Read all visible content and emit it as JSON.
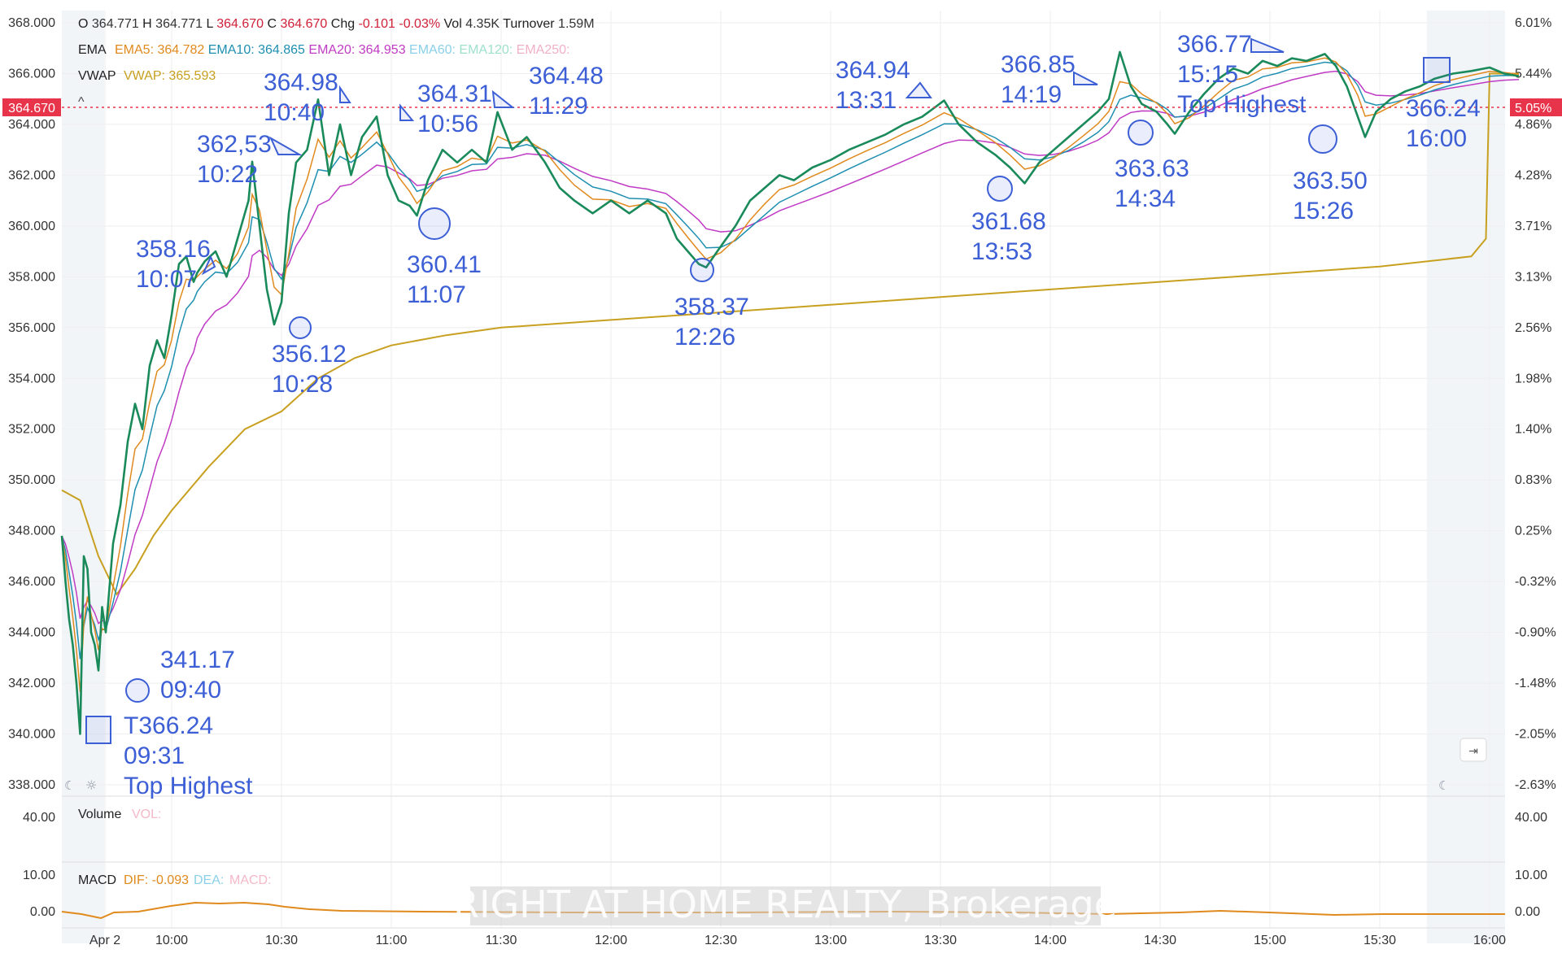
{
  "header": {
    "ohlc": [
      {
        "label": "O",
        "value": "364.771",
        "color": "#333333"
      },
      {
        "label": "H",
        "value": "364.771",
        "color": "#333333"
      },
      {
        "label": "L",
        "value": "364.670",
        "color": "#d0213a"
      },
      {
        "label": "C",
        "value": "364.670",
        "color": "#d0213a"
      },
      {
        "label": "Chg",
        "value": "-0.101",
        "color": "#d0213a"
      },
      {
        "label": "",
        "value": "-0.03%",
        "color": "#d0213a"
      },
      {
        "label": "Vol",
        "value": "4.35K",
        "color": "#333333"
      },
      {
        "label": "Turnover",
        "value": "1.59M",
        "color": "#333333"
      }
    ],
    "ema_title": "EMA",
    "ema_items": [
      {
        "text": "EMA5: 364.782",
        "color": "#e08a1e"
      },
      {
        "text": "EMA10: 364.865",
        "color": "#1e8fb0"
      },
      {
        "text": "EMA20: 364.953",
        "color": "#c03bc4"
      },
      {
        "text": "EMA60:",
        "color": "#8ad0e8"
      },
      {
        "text": "EMA120:",
        "color": "#9ee0cc"
      },
      {
        "text": "EMA250:",
        "color": "#f0b0c8"
      }
    ],
    "vwap_title": "VWAP",
    "vwap_item": {
      "text": "VWAP: 365.593",
      "color": "#c8a020"
    },
    "caret": "^"
  },
  "price_axis": {
    "ticks": [
      "368.000",
      "366.000",
      "364.000",
      "362.000",
      "360.000",
      "358.000",
      "356.000",
      "354.000",
      "352.000",
      "350.000",
      "348.000",
      "346.000",
      "344.000",
      "342.000",
      "340.000",
      "338.000"
    ]
  },
  "pct_axis": {
    "ticks": [
      "6.01%",
      "5.44%",
      "4.86%",
      "4.28%",
      "3.71%",
      "3.13%",
      "2.56%",
      "1.98%",
      "1.40%",
      "0.83%",
      "0.25%",
      "-0.32%",
      "-0.90%",
      "-1.48%",
      "-2.05%",
      "-2.63%"
    ]
  },
  "time_axis": {
    "ticks": [
      "Apr 2",
      "10:00",
      "10:30",
      "11:00",
      "11:30",
      "12:00",
      "12:30",
      "13:00",
      "13:30",
      "14:00",
      "14:30",
      "15:00",
      "15:30",
      "16:00"
    ]
  },
  "last_price": {
    "left": "364.670",
    "right": "5.05%",
    "color": "#e8344a"
  },
  "volume": {
    "title": "Volume",
    "item": "VOL:",
    "tick": "40.00"
  },
  "macd": {
    "title": "MACD",
    "dif": "DIF: -0.093",
    "dea": "DEA:",
    "macd": "MACD:",
    "ticks": [
      "10.00",
      "0.00"
    ]
  },
  "watermark": "RIGHT AT HOME REALTY, Brokerage",
  "annotations": [
    {
      "price": "T366.24",
      "time": "09:31",
      "extra": "Top Highest"
    },
    {
      "price": "341.17",
      "time": "09:40"
    },
    {
      "price": "358.16",
      "time": "10:07"
    },
    {
      "price": "362,53",
      "time": "10:22"
    },
    {
      "price": "356.12",
      "time": "10:28"
    },
    {
      "price": "364.98",
      "time": "10:40"
    },
    {
      "price": "364.31",
      "time": "10:56"
    },
    {
      "price": "360.41",
      "time": "11:07"
    },
    {
      "price": "364.48",
      "time": "11:29"
    },
    {
      "price": "358.37",
      "time": "12:26"
    },
    {
      "price": "364.94",
      "time": "13:31"
    },
    {
      "price": "361.68",
      "time": "13:53"
    },
    {
      "price": "366.85",
      "time": "14:19"
    },
    {
      "price": "363.63",
      "time": "14:34"
    },
    {
      "price": "366.77",
      "time": "15:15",
      "extra": "Top Highest"
    },
    {
      "price": "363.50",
      "time": "15:26"
    },
    {
      "price": "366.24",
      "time": "16:00"
    }
  ],
  "colors": {
    "price": "#1a8a5a",
    "ema5": "#e08a1e",
    "ema10": "#1e8fb0",
    "ema20": "#c03bc4",
    "vwap": "#c8a020",
    "annotation": "#3d5fd6",
    "grid": "#eeeeee"
  },
  "chart_data": {
    "type": "line",
    "title": "",
    "x_unit": "time (HH:MM)",
    "y_unit": "price",
    "ylim": [
      338,
      368
    ],
    "xlim": [
      "09:30",
      "16:08"
    ],
    "grid": true,
    "legend": "top-left",
    "series": [
      {
        "name": "Price",
        "points": [
          [
            "09:30",
            347.8
          ],
          [
            "09:31",
            346.0
          ],
          [
            "09:32",
            344.5
          ],
          [
            "09:33",
            343.5
          ],
          [
            "09:34",
            342.0
          ],
          [
            "09:35",
            340.0
          ],
          [
            "09:36",
            347.0
          ],
          [
            "09:37",
            346.5
          ],
          [
            "09:38",
            344.0
          ],
          [
            "09:39",
            343.5
          ],
          [
            "09:40",
            342.5
          ],
          [
            "09:41",
            345.0
          ],
          [
            "09:42",
            344.0
          ],
          [
            "09:44",
            347.5
          ],
          [
            "09:46",
            349.0
          ],
          [
            "09:48",
            351.5
          ],
          [
            "09:50",
            353.0
          ],
          [
            "09:52",
            352.0
          ],
          [
            "09:54",
            354.5
          ],
          [
            "09:56",
            355.5
          ],
          [
            "09:58",
            354.8
          ],
          [
            "10:00",
            356.5
          ],
          [
            "10:02",
            358.5
          ],
          [
            "10:04",
            358.8
          ],
          [
            "10:06",
            357.8
          ],
          [
            "10:07",
            358.16
          ],
          [
            "10:09",
            358.6
          ],
          [
            "10:12",
            359.0
          ],
          [
            "10:15",
            358.0
          ],
          [
            "10:18",
            359.5
          ],
          [
            "10:21",
            361.0
          ],
          [
            "10:22",
            362.53
          ],
          [
            "10:24",
            360.0
          ],
          [
            "10:26",
            357.5
          ],
          [
            "10:28",
            356.12
          ],
          [
            "10:30",
            357.0
          ],
          [
            "10:32",
            360.5
          ],
          [
            "10:34",
            362.5
          ],
          [
            "10:37",
            363.0
          ],
          [
            "10:40",
            364.98
          ],
          [
            "10:43",
            362.0
          ],
          [
            "10:46",
            364.0
          ],
          [
            "10:49",
            362.0
          ],
          [
            "10:52",
            363.5
          ],
          [
            "10:56",
            364.31
          ],
          [
            "10:59",
            362.0
          ],
          [
            "11:02",
            361.0
          ],
          [
            "11:05",
            360.8
          ],
          [
            "11:07",
            360.41
          ],
          [
            "11:10",
            361.8
          ],
          [
            "11:14",
            363.0
          ],
          [
            "11:18",
            362.5
          ],
          [
            "11:22",
            363.0
          ],
          [
            "11:26",
            362.5
          ],
          [
            "11:29",
            364.48
          ],
          [
            "11:33",
            363.0
          ],
          [
            "11:37",
            363.5
          ],
          [
            "11:42",
            362.5
          ],
          [
            "11:46",
            361.5
          ],
          [
            "11:50",
            361.0
          ],
          [
            "11:55",
            360.5
          ],
          [
            "12:00",
            361.0
          ],
          [
            "12:05",
            360.5
          ],
          [
            "12:10",
            361.0
          ],
          [
            "12:15",
            360.5
          ],
          [
            "12:18",
            359.5
          ],
          [
            "12:21",
            359.0
          ],
          [
            "12:24",
            358.5
          ],
          [
            "12:26",
            358.37
          ],
          [
            "12:30",
            359.2
          ],
          [
            "12:34",
            360.0
          ],
          [
            "12:38",
            361.0
          ],
          [
            "12:42",
            361.5
          ],
          [
            "12:46",
            362.0
          ],
          [
            "12:50",
            361.8
          ],
          [
            "12:55",
            362.3
          ],
          [
            "13:00",
            362.6
          ],
          [
            "13:05",
            363.0
          ],
          [
            "13:10",
            363.3
          ],
          [
            "13:15",
            363.6
          ],
          [
            "13:20",
            364.0
          ],
          [
            "13:25",
            364.3
          ],
          [
            "13:31",
            364.94
          ],
          [
            "13:35",
            364.0
          ],
          [
            "13:40",
            363.3
          ],
          [
            "13:45",
            362.8
          ],
          [
            "13:49",
            362.3
          ],
          [
            "13:53",
            361.68
          ],
          [
            "13:57",
            362.5
          ],
          [
            "14:01",
            363.0
          ],
          [
            "14:05",
            363.5
          ],
          [
            "14:09",
            364.0
          ],
          [
            "14:13",
            364.5
          ],
          [
            "14:16",
            365.0
          ],
          [
            "14:19",
            366.85
          ],
          [
            "14:22",
            365.5
          ],
          [
            "14:25",
            364.8
          ],
          [
            "14:29",
            364.5
          ],
          [
            "14:32",
            364.0
          ],
          [
            "14:34",
            363.63
          ],
          [
            "14:38",
            364.5
          ],
          [
            "14:42",
            365.2
          ],
          [
            "14:46",
            365.8
          ],
          [
            "14:50",
            366.2
          ],
          [
            "14:54",
            366.0
          ],
          [
            "14:58",
            366.5
          ],
          [
            "15:02",
            366.3
          ],
          [
            "15:06",
            366.6
          ],
          [
            "15:10",
            366.5
          ],
          [
            "15:15",
            366.77
          ],
          [
            "15:18",
            366.3
          ],
          [
            "15:21",
            365.5
          ],
          [
            "15:24",
            364.3
          ],
          [
            "15:26",
            363.5
          ],
          [
            "15:29",
            364.5
          ],
          [
            "15:33",
            365.0
          ],
          [
            "15:37",
            365.3
          ],
          [
            "15:41",
            365.5
          ],
          [
            "15:45",
            365.8
          ],
          [
            "15:50",
            366.0
          ],
          [
            "15:55",
            366.1
          ],
          [
            "16:00",
            366.24
          ],
          [
            "16:04",
            366.0
          ],
          [
            "16:08",
            365.9
          ]
        ]
      },
      {
        "name": "VWAP",
        "points": [
          [
            "09:30",
            349.6
          ],
          [
            "09:35",
            349.2
          ],
          [
            "09:40",
            347.0
          ],
          [
            "09:45",
            345.5
          ],
          [
            "09:50",
            346.5
          ],
          [
            "09:55",
            347.8
          ],
          [
            "10:00",
            348.8
          ],
          [
            "10:10",
            350.5
          ],
          [
            "10:20",
            352.0
          ],
          [
            "10:30",
            352.7
          ],
          [
            "10:40",
            354.0
          ],
          [
            "10:50",
            354.8
          ],
          [
            "11:00",
            355.3
          ],
          [
            "11:15",
            355.7
          ],
          [
            "11:30",
            356.0
          ],
          [
            "12:00",
            356.3
          ],
          [
            "12:30",
            356.6
          ],
          [
            "13:00",
            356.9
          ],
          [
            "13:30",
            357.2
          ],
          [
            "14:00",
            357.5
          ],
          [
            "14:30",
            357.8
          ],
          [
            "15:00",
            358.1
          ],
          [
            "15:30",
            358.4
          ],
          [
            "15:55",
            358.8
          ],
          [
            "15:59",
            359.5
          ],
          [
            "16:00",
            366.0
          ],
          [
            "16:08",
            366.0
          ]
        ]
      }
    ]
  }
}
